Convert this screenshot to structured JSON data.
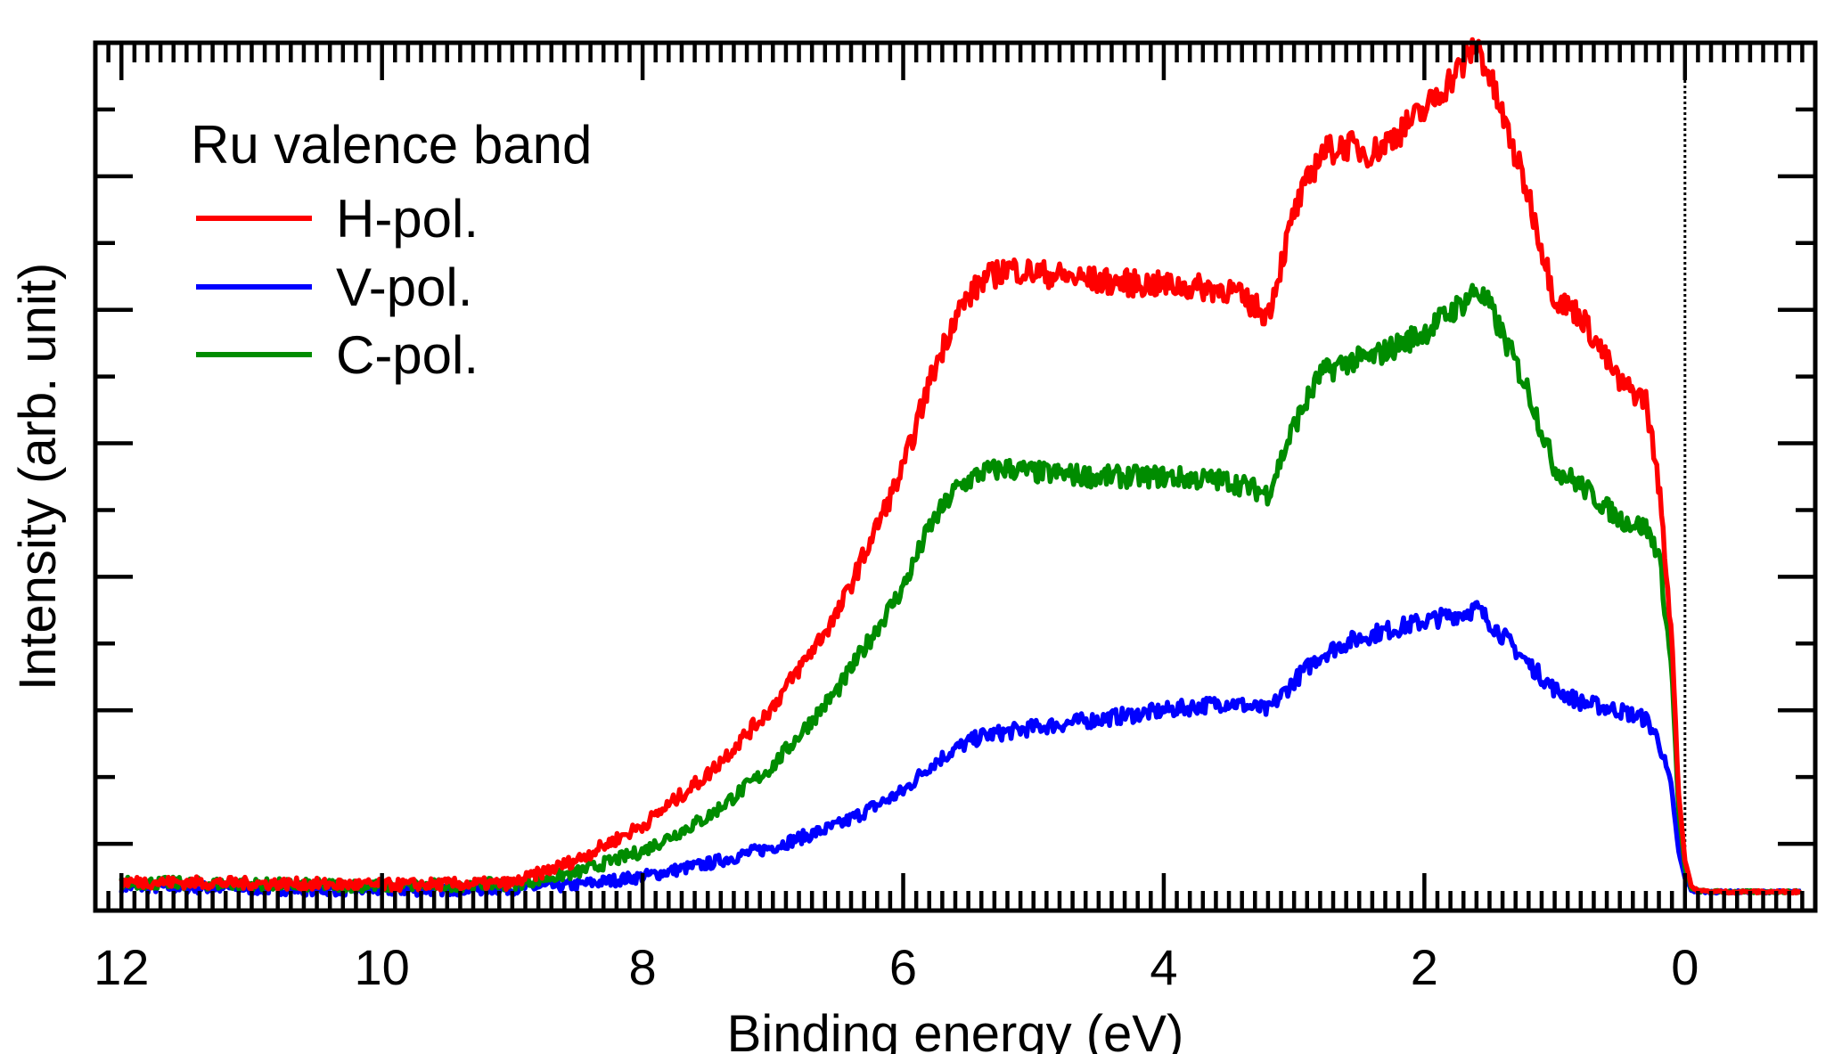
{
  "chart_data": {
    "type": "line",
    "title": "",
    "xlabel": "Binding energy (eV)",
    "ylabel": "Intensity (arb. unit)",
    "xlim": [
      12.2,
      -1.0
    ],
    "ylim": [
      -0.02,
      1.0
    ],
    "x_ticks": [
      12,
      10,
      8,
      6,
      4,
      2,
      0
    ],
    "x_tick_labels": [
      "12",
      "10",
      "8",
      "6",
      "4",
      "2",
      "0"
    ],
    "fermi_level_marker": 0,
    "legend": {
      "title": "Ru valence band",
      "placement": "top-left"
    },
    "series": [
      {
        "name": "H-pol.",
        "color": "#ff0000",
        "x": [
          12.0,
          11.0,
          10.0,
          9.0,
          8.5,
          8.0,
          7.5,
          7.0,
          6.5,
          6.0,
          5.8,
          5.6,
          5.4,
          5.2,
          5.0,
          4.5,
          4.0,
          3.5,
          3.2,
          3.0,
          2.8,
          2.6,
          2.4,
          2.0,
          1.7,
          1.6,
          1.5,
          1.2,
          1.0,
          0.8,
          0.5,
          0.3,
          0.2,
          0.1,
          0.05,
          0.0,
          -0.05,
          -0.1,
          -0.3,
          -0.6,
          -0.9
        ],
        "values": [
          0.014,
          0.012,
          0.01,
          0.012,
          0.04,
          0.08,
          0.14,
          0.22,
          0.33,
          0.5,
          0.6,
          0.68,
          0.72,
          0.735,
          0.73,
          0.72,
          0.715,
          0.71,
          0.68,
          0.8,
          0.87,
          0.88,
          0.87,
          0.92,
          0.975,
          1.0,
          0.96,
          0.82,
          0.7,
          0.68,
          0.6,
          0.58,
          0.48,
          0.3,
          0.12,
          0.04,
          0.008,
          0.003,
          0.002,
          0.002,
          0.002
        ]
      },
      {
        "name": "V-pol.",
        "color": "#0000ff",
        "x": [
          12.0,
          11.0,
          10.0,
          9.0,
          8.5,
          8.0,
          7.5,
          7.0,
          6.5,
          6.0,
          5.8,
          5.6,
          5.4,
          5.2,
          5.0,
          4.5,
          4.0,
          3.5,
          3.2,
          3.0,
          2.8,
          2.6,
          2.4,
          2.0,
          1.7,
          1.6,
          1.5,
          1.2,
          1.0,
          0.8,
          0.5,
          0.3,
          0.2,
          0.1,
          0.05,
          0.0,
          -0.05,
          -0.1,
          -0.3,
          -0.6,
          -0.9
        ],
        "values": [
          0.008,
          0.006,
          0.004,
          0.006,
          0.01,
          0.02,
          0.035,
          0.055,
          0.08,
          0.12,
          0.15,
          0.17,
          0.185,
          0.19,
          0.195,
          0.205,
          0.215,
          0.225,
          0.215,
          0.25,
          0.28,
          0.295,
          0.305,
          0.32,
          0.33,
          0.335,
          0.32,
          0.27,
          0.24,
          0.225,
          0.215,
          0.205,
          0.18,
          0.12,
          0.05,
          0.018,
          0.004,
          0.002,
          0.002,
          0.002,
          0.002
        ]
      },
      {
        "name": "C-pol.",
        "color": "#008c00",
        "x": [
          12.0,
          11.0,
          10.0,
          9.0,
          8.5,
          8.0,
          7.5,
          7.0,
          6.5,
          6.0,
          5.8,
          5.6,
          5.4,
          5.2,
          5.0,
          4.5,
          4.0,
          3.5,
          3.2,
          3.0,
          2.8,
          2.6,
          2.4,
          2.0,
          1.7,
          1.6,
          1.5,
          1.2,
          1.0,
          0.8,
          0.5,
          0.3,
          0.2,
          0.1,
          0.05,
          0.0,
          -0.05,
          -0.1,
          -0.3,
          -0.6,
          -0.9
        ],
        "values": [
          0.013,
          0.011,
          0.009,
          0.011,
          0.025,
          0.05,
          0.09,
          0.15,
          0.24,
          0.36,
          0.43,
          0.475,
          0.495,
          0.5,
          0.495,
          0.49,
          0.49,
          0.485,
          0.47,
          0.55,
          0.61,
          0.625,
          0.63,
          0.66,
          0.695,
          0.71,
          0.69,
          0.59,
          0.5,
          0.48,
          0.44,
          0.43,
          0.4,
          0.26,
          0.1,
          0.03,
          0.006,
          0.003,
          0.002,
          0.002,
          0.002
        ]
      }
    ]
  }
}
